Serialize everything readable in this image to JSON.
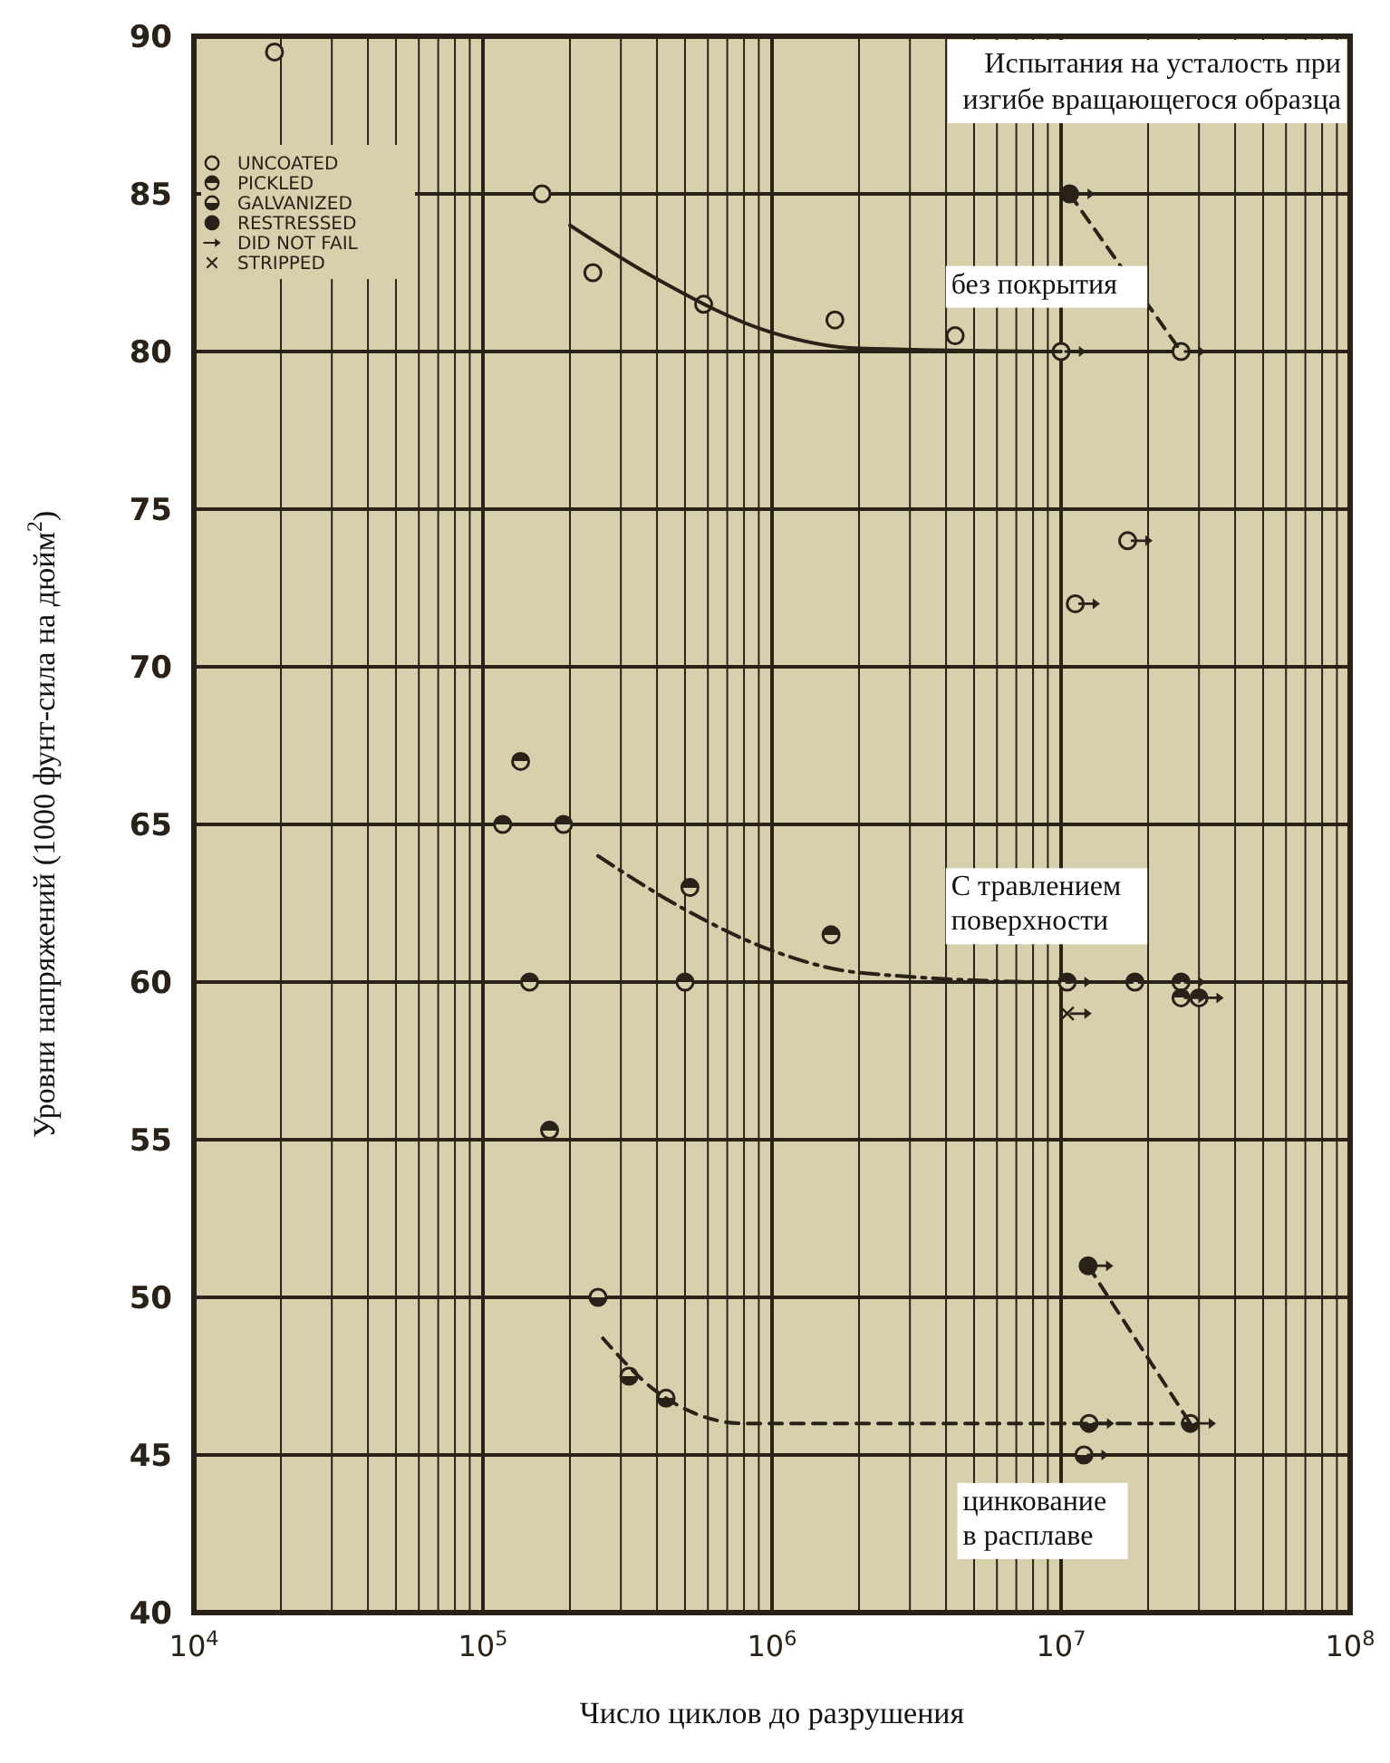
{
  "chart_data": {
    "type": "scatter",
    "title": "Испытания на усталость при\nизгибе вращающегося образца",
    "xlabel": "Число циклов до разрушения",
    "ylabel": "Уровни напряжений (1000 фунт-сила на дюйм$^{2}$)",
    "log": "x",
    "xlim": [
      10000,
      100000000
    ],
    "ylim": [
      40,
      90
    ],
    "xticks": [
      {
        "value": 10000,
        "label": "10$^{4}$"
      },
      {
        "value": 100000,
        "label": "10$^{5}$"
      },
      {
        "value": 1000000,
        "label": "10$^{6}$"
      },
      {
        "value": 10000000,
        "label": "10$^{7}$"
      },
      {
        "value": 100000000,
        "label": "10$^{8}$"
      }
    ],
    "yticks": [
      40,
      45,
      50,
      55,
      60,
      65,
      70,
      75,
      80,
      85,
      90
    ],
    "grid": true,
    "legend": "top left",
    "series": [
      {
        "name": "UNCOATED",
        "color": "#2a2218",
        "marker": "circle",
        "x": [
          19000,
          160000,
          240000,
          580000,
          1650000,
          4300000,
          10000000,
          26000000,
          17000000,
          11200000
        ],
        "values": [
          89.5,
          85,
          82.5,
          81.5,
          81,
          80.5,
          80,
          80,
          74,
          72
        ]
      },
      {
        "name": "PICKLED",
        "color": "#2a2218",
        "marker": "circle",
        "x": [
          135000,
          117000,
          190000,
          145000,
          170000,
          520000,
          500000,
          1600000,
          10500000,
          18000000,
          26000000,
          26000000,
          30000000
        ],
        "values": [
          67,
          65,
          65,
          60,
          55.3,
          63,
          60,
          61.5,
          60,
          60,
          60,
          59.5,
          59.5
        ]
      },
      {
        "name": "GALVANIZED",
        "color": "#2a2218",
        "marker": "circle",
        "x": [
          250000,
          320000,
          430000,
          12500000,
          12000000,
          28000000
        ],
        "values": [
          50,
          47.5,
          46.8,
          46,
          45,
          46
        ]
      },
      {
        "name": "RESTRESSED",
        "color": "#2a2218",
        "marker": "circle",
        "x": [
          10700000,
          12400000
        ],
        "values": [
          85,
          51
        ]
      },
      {
        "name": "DID NOT FAIL",
        "color": "#2a2218",
        "x": [
          12000000,
          11200000,
          29000000,
          19000000,
          12500000,
          11700000,
          29000000,
          29000000,
          33500000,
          11700000,
          13900000,
          14000000,
          13400000,
          31500000
        ],
        "values": [
          85,
          80,
          80,
          74,
          72,
          60,
          60,
          59.5,
          59.5,
          59,
          51,
          46,
          45,
          46
        ]
      },
      {
        "name": "STRIPPED",
        "color": "#2a2218",
        "marker": "cross",
        "x": [
          10500000
        ],
        "values": [
          59
        ]
      },
      {
        "type": "line",
        "color": "#2a2218",
        "line_style": "solid",
        "x": [
          200000,
          400000,
          1000000,
          2000000,
          10000000
        ],
        "values": [
          84,
          82.3,
          80.6,
          80.1,
          80
        ]
      },
      {
        "type": "line",
        "color": "#2a2218",
        "line_style": "dashdot",
        "x": [
          250000,
          500000,
          1000000,
          2000000,
          10000000,
          30000000
        ],
        "values": [
          64,
          62.3,
          61,
          60.3,
          60,
          60
        ]
      },
      {
        "type": "line",
        "color": "#2a2218",
        "line_style": "dashed",
        "x": [
          260000,
          400000,
          800000,
          10000000,
          28000000
        ],
        "values": [
          48.7,
          47,
          46,
          46,
          46
        ]
      },
      {
        "type": "line",
        "color": "#2a2218",
        "line_style": "dashed",
        "x": [
          10700000,
          26000000
        ],
        "values": [
          85,
          80
        ]
      },
      {
        "type": "line",
        "color": "#2a2218",
        "line_style": "dashed",
        "x": [
          12400000,
          28000000
        ],
        "values": [
          51,
          46
        ]
      }
    ],
    "annotations": [
      "без покрытия",
      "С травлением\nповерхности",
      "цинкование\nв расплаве"
    ]
  }
}
